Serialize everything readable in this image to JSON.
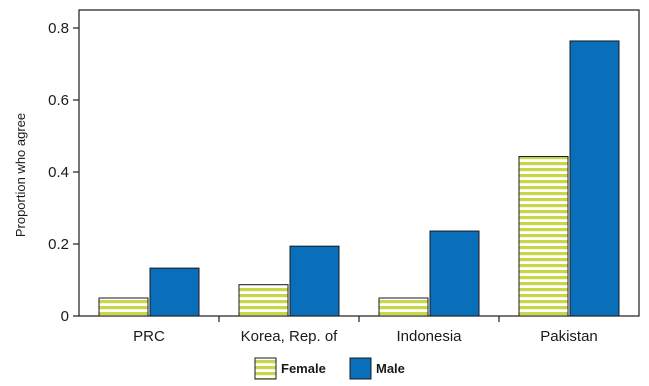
{
  "chart_data": {
    "type": "bar",
    "title": "",
    "xlabel": "",
    "ylabel": "Proportion who agree",
    "categories": [
      "PRC",
      "Korea, Rep. of",
      "Indonesia",
      "Pakistan"
    ],
    "series": [
      {
        "name": "Female",
        "values": [
          0.05,
          0.087,
          0.05,
          0.443
        ],
        "color": "#c8d64a",
        "pattern": "horizontal-stripes"
      },
      {
        "name": "Male",
        "values": [
          0.133,
          0.194,
          0.236,
          0.764
        ],
        "color": "#0a6fba",
        "pattern": "solid"
      }
    ],
    "ylim": [
      0,
      0.85
    ],
    "yticks": [
      0,
      0.2,
      0.4,
      0.6,
      0.8
    ],
    "ytick_labels": [
      "0",
      "0.2",
      "0.4",
      "0.6",
      "0.8"
    ],
    "grid": false,
    "legend_position": "bottom-center"
  }
}
